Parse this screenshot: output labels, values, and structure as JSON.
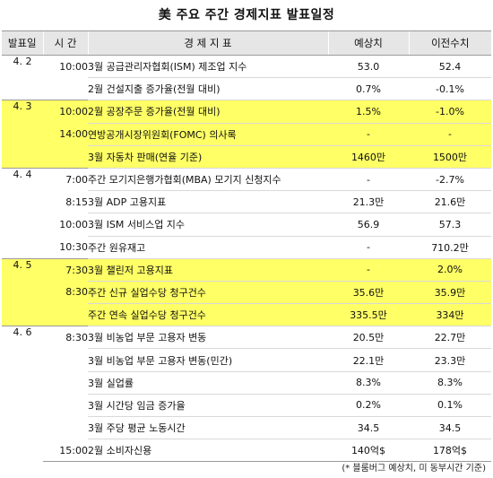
{
  "title": "美 주요 주간 경제지표 발표일정",
  "headers": {
    "date": "발표일",
    "time": "시 간",
    "indicator": "경 제 지 표",
    "forecast": "예상치",
    "previous": "이전수치"
  },
  "groups": [
    {
      "date": "4. 2",
      "highlight": false,
      "rows": [
        {
          "time": "10:00",
          "indicator": "3월 공급관리자협회(ISM) 제조업 지수",
          "forecast": "53.0",
          "previous": "52.4"
        },
        {
          "time": "",
          "indicator": "2월 건설지출 증가율(전월 대비)",
          "forecast": "0.7%",
          "previous": "-0.1%"
        }
      ]
    },
    {
      "date": "4. 3",
      "highlight": true,
      "rows": [
        {
          "time": "10:00",
          "indicator": "2월 공장주문 증가율(전월 대비)",
          "forecast": "1.5%",
          "previous": "-1.0%"
        },
        {
          "time": "14:00",
          "indicator": "연방공개시장위원회(FOMC) 의사록",
          "forecast": "-",
          "previous": "-"
        },
        {
          "time": "",
          "indicator": "3월 자동차 판매(연율 기준)",
          "forecast": "1460만",
          "previous": "1500만"
        }
      ]
    },
    {
      "date": "4. 4",
      "highlight": false,
      "rows": [
        {
          "time": "7:00",
          "indicator": "주간 모기지은행가협회(MBA) 모기지 신청지수",
          "forecast": "-",
          "previous": "-2.7%"
        },
        {
          "time": "8:15",
          "indicator": "3월 ADP 고용지표",
          "forecast": "21.3만",
          "previous": "21.6만"
        },
        {
          "time": "10:00",
          "indicator": "3월 ISM 서비스업 지수",
          "forecast": "56.9",
          "previous": "57.3"
        },
        {
          "time": "10:30",
          "indicator": "주간 원유재고",
          "forecast": "-",
          "previous": "710.2만"
        }
      ]
    },
    {
      "date": "4. 5",
      "highlight": true,
      "rows": [
        {
          "time": "7:30",
          "indicator": "3월 챌린저 고용지표",
          "forecast": "-",
          "previous": "2.0%"
        },
        {
          "time": "8:30",
          "indicator": "주간 신규 실업수당 청구건수",
          "forecast": "35.6만",
          "previous": "35.9만"
        },
        {
          "time": "",
          "indicator": "주간 연속 실업수당 청구건수",
          "forecast": "335.5만",
          "previous": "334만"
        }
      ]
    },
    {
      "date": "4. 6",
      "highlight": false,
      "rows": [
        {
          "time": "8:30",
          "indicator": "3월 비농업 부문 고용자 변동",
          "forecast": "20.5만",
          "previous": "22.7만"
        },
        {
          "time": "",
          "indicator": "3월 비농업 부문 고용자 변동(민간)",
          "forecast": "22.1만",
          "previous": "23.3만"
        },
        {
          "time": "",
          "indicator": "3월 실업률",
          "forecast": "8.3%",
          "previous": "8.3%"
        },
        {
          "time": "",
          "indicator": "3월 시간당 임금 증가율",
          "forecast": "0.2%",
          "previous": "0.1%"
        },
        {
          "time": "",
          "indicator": "3월 주당 평균 노동시간",
          "forecast": "34.5",
          "previous": "34.5"
        },
        {
          "time": "15:00",
          "indicator": "2월 소비자신용",
          "forecast": "140억$",
          "previous": "178억$"
        }
      ]
    }
  ],
  "footnote": "(* 블룸버그 예상치, 미 동부시간 기준)"
}
